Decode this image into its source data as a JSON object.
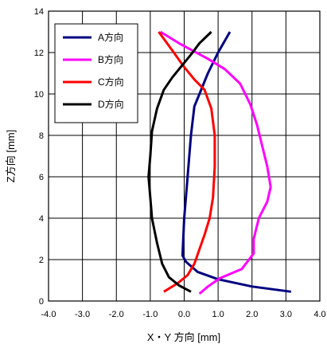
{
  "chart_data": {
    "type": "line",
    "title": "",
    "xlabel": "X・Y 方向 [mm]",
    "ylabel": "Z方向 [mm]",
    "xlim": [
      -4.0,
      4.0
    ],
    "ylim": [
      0,
      14
    ],
    "x_ticks": [
      "-4.0",
      "-3.0",
      "-2.0",
      "-1.0",
      "0.0",
      "1.0",
      "2.0",
      "3.0",
      "4.0"
    ],
    "y_ticks": [
      "0",
      "2",
      "4",
      "6",
      "8",
      "10",
      "12",
      "14"
    ],
    "x_tick_values": [
      -4,
      -3,
      -2,
      -1,
      0,
      1,
      2,
      3,
      4
    ],
    "y_tick_values": [
      0,
      2,
      4,
      6,
      8,
      10,
      12,
      14
    ],
    "grid": true,
    "legend_position": "top-left",
    "series": [
      {
        "name": "A方向",
        "color": "#000080",
        "points": [
          [
            3.15,
            0.45
          ],
          [
            2.0,
            0.7
          ],
          [
            1.0,
            1.05
          ],
          [
            0.4,
            1.4
          ],
          [
            0.05,
            1.9
          ],
          [
            -0.05,
            2.2
          ],
          [
            0.0,
            4.0
          ],
          [
            0.1,
            6.0
          ],
          [
            0.2,
            8.0
          ],
          [
            0.3,
            9.4
          ],
          [
            0.45,
            10.0
          ],
          [
            0.7,
            11.0
          ],
          [
            1.0,
            12.0
          ],
          [
            1.35,
            13.0
          ]
        ]
      },
      {
        "name": "B方向",
        "color": "#ff00ff",
        "points": [
          [
            0.45,
            0.35
          ],
          [
            0.7,
            0.7
          ],
          [
            1.05,
            1.1
          ],
          [
            1.7,
            1.55
          ],
          [
            2.05,
            2.3
          ],
          [
            2.05,
            3.0
          ],
          [
            2.2,
            4.0
          ],
          [
            2.45,
            4.8
          ],
          [
            2.55,
            5.5
          ],
          [
            2.45,
            6.5
          ],
          [
            2.3,
            7.5
          ],
          [
            2.15,
            8.5
          ],
          [
            1.95,
            9.5
          ],
          [
            1.65,
            10.5
          ],
          [
            1.2,
            11.2
          ],
          [
            0.7,
            11.7
          ],
          [
            -0.1,
            12.4
          ],
          [
            -0.7,
            13.0
          ]
        ]
      },
      {
        "name": "C方向",
        "color": "#ff0000",
        "points": [
          [
            -0.6,
            0.45
          ],
          [
            -0.2,
            0.85
          ],
          [
            0.1,
            1.25
          ],
          [
            0.3,
            1.8
          ],
          [
            0.45,
            2.5
          ],
          [
            0.6,
            3.2
          ],
          [
            0.75,
            4.0
          ],
          [
            0.85,
            5.0
          ],
          [
            0.9,
            6.5
          ],
          [
            0.9,
            8.0
          ],
          [
            0.8,
            9.3
          ],
          [
            0.6,
            10.2
          ],
          [
            0.3,
            10.7
          ],
          [
            0.0,
            11.3
          ],
          [
            -0.35,
            12.1
          ],
          [
            -0.75,
            13.0
          ]
        ]
      },
      {
        "name": "D方向",
        "color": "#000000",
        "points": [
          [
            0.2,
            0.45
          ],
          [
            -0.15,
            0.75
          ],
          [
            -0.45,
            1.15
          ],
          [
            -0.65,
            1.8
          ],
          [
            -0.8,
            2.8
          ],
          [
            -0.95,
            4.0
          ],
          [
            -1.0,
            5.0
          ],
          [
            -1.05,
            6.0
          ],
          [
            -1.0,
            7.0
          ],
          [
            -0.95,
            8.2
          ],
          [
            -0.8,
            9.3
          ],
          [
            -0.6,
            10.2
          ],
          [
            -0.35,
            10.8
          ],
          [
            -0.1,
            11.3
          ],
          [
            0.2,
            11.9
          ],
          [
            0.45,
            12.45
          ],
          [
            0.8,
            13.0
          ]
        ]
      }
    ]
  }
}
